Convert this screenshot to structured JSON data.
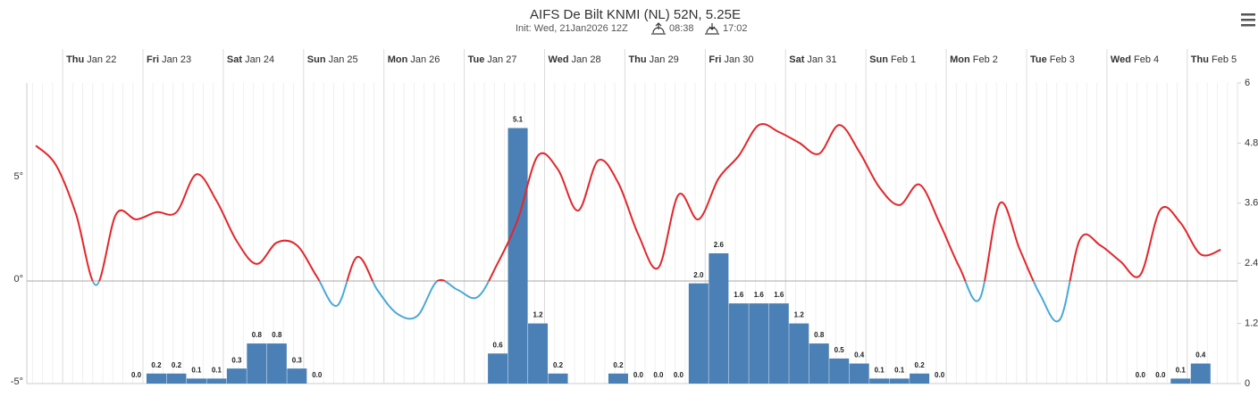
{
  "chart_data": {
    "type": "line",
    "title": "AIFS De Bilt KNMI (NL) 52N, 5.25E",
    "subtitle": "Init: Wed, 21Jan2026 12Z",
    "sunrise": "08:38",
    "sunset": "17:02",
    "x": [
      -8,
      -2,
      4,
      10,
      16,
      22,
      28,
      34,
      40,
      46,
      52,
      58,
      64,
      70,
      76,
      82,
      88,
      94,
      100,
      106,
      112,
      118,
      124,
      130,
      136,
      142,
      148,
      154,
      160,
      166,
      172,
      178,
      184,
      190,
      196,
      202,
      208,
      214,
      220,
      226,
      232,
      238,
      244,
      250,
      256,
      262,
      268,
      274,
      280,
      286,
      292,
      298,
      304,
      310,
      316,
      322,
      328,
      334,
      340,
      346
    ],
    "xlim": [
      -10.7,
      351
    ],
    "xticks": [
      {
        "value": 0,
        "label": "Thu Jan 22"
      },
      {
        "value": 24,
        "label": "Fri Jan 23"
      },
      {
        "value": 48,
        "label": "Sat Jan 24"
      },
      {
        "value": 72,
        "label": "Sun Jan 25"
      },
      {
        "value": 96,
        "label": "Mon Jan 26"
      },
      {
        "value": 120,
        "label": "Tue Jan 27"
      },
      {
        "value": 144,
        "label": "Wed Jan 28"
      },
      {
        "value": 168,
        "label": "Thu Jan 29"
      },
      {
        "value": 192,
        "label": "Fri Jan 30"
      },
      {
        "value": 216,
        "label": "Sat Jan 31"
      },
      {
        "value": 240,
        "label": "Sun Feb 1"
      },
      {
        "value": 264,
        "label": "Mon Feb 2"
      },
      {
        "value": 288,
        "label": "Tue Feb 3"
      },
      {
        "value": 312,
        "label": "Wed Feb 4"
      },
      {
        "value": 336,
        "label": "Thu Feb 5"
      }
    ],
    "ylim": [
      -5,
      9.65
    ],
    "yticks": [
      {
        "value": -5,
        "label": "-5°"
      },
      {
        "value": 0,
        "label": "0°"
      },
      {
        "value": 5,
        "label": "5°"
      }
    ],
    "y2lim": [
      0,
      6
    ],
    "y2ticks": [
      0,
      1.2,
      2.4,
      3.6,
      4.8,
      6
    ],
    "series": [
      {
        "type": "line",
        "color": "#e3262b",
        "negative_color": "#4aa8d8",
        "values": [
          6.6,
          5.65,
          3.26,
          -0.2,
          3.26,
          3.0,
          3.35,
          3.35,
          5.2,
          3.9,
          1.95,
          0.83,
          1.87,
          1.74,
          0.2,
          -1.2,
          1.17,
          -0.43,
          -1.6,
          -1.7,
          0.0,
          -0.43,
          -0.78,
          0.87,
          3.0,
          6.1,
          5.43,
          3.43,
          5.87,
          4.78,
          2.26,
          0.65,
          4.2,
          3.0,
          5.0,
          6.1,
          7.6,
          7.26,
          6.74,
          6.2,
          7.6,
          6.3,
          4.57,
          3.7,
          4.7,
          2.83,
          0.65,
          -0.87,
          3.78,
          1.52,
          -0.65,
          -1.87,
          2.04,
          1.74,
          0.96,
          0.3,
          3.48,
          2.83,
          1.3,
          1.52
        ]
      },
      {
        "type": "column",
        "axis": "y2",
        "color": "#4a80b6",
        "values": [
          null,
          null,
          null,
          null,
          null,
          0,
          0.2,
          0.2,
          0.1,
          0.1,
          0.3,
          0.8,
          0.8,
          0.3,
          0,
          null,
          null,
          null,
          null,
          null,
          null,
          null,
          null,
          0.6,
          5.1,
          1.2,
          0.2,
          null,
          null,
          0.2,
          0,
          0,
          0,
          2.0,
          2.6,
          1.6,
          1.6,
          1.6,
          1.2,
          0.8,
          0.5,
          0.4,
          0.1,
          0.1,
          0.2,
          0,
          null,
          null,
          null,
          null,
          null,
          null,
          null,
          null,
          null,
          0,
          0,
          0.1,
          0.4,
          null
        ],
        "value_labels": [
          null,
          null,
          null,
          null,
          null,
          "0.0",
          "0.2",
          "0.2",
          "0.1",
          "0.1",
          "0.3",
          "0.8",
          "0.8",
          "0.3",
          "0.0",
          null,
          null,
          null,
          null,
          null,
          null,
          null,
          null,
          "0.6",
          "5.1",
          "1.2",
          "0.2",
          null,
          null,
          "0.2",
          "0.0",
          "0.0",
          "0.0",
          "2.0",
          "2.6",
          "1.6",
          "1.6",
          "1.6",
          "1.2",
          "0.8",
          "0.5",
          "0.4",
          "0.1",
          "0.1",
          "0.2",
          "0.0",
          null,
          null,
          null,
          null,
          null,
          null,
          null,
          null,
          null,
          "0.0",
          "0.0",
          "0.1",
          "0.4",
          null
        ]
      }
    ]
  }
}
